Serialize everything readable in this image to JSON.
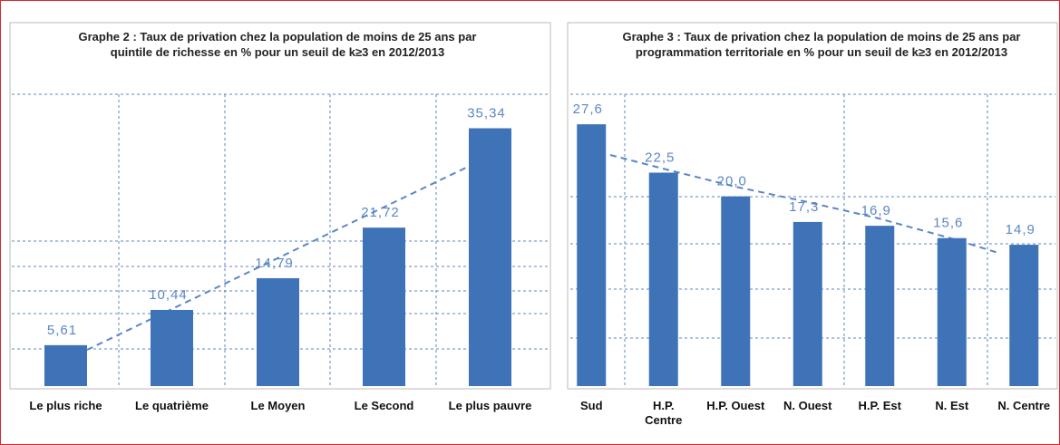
{
  "chart_data": [
    {
      "type": "bar",
      "title": "Graphe 2 : Taux de privation chez la population de moins de 25 ans par quintile de richesse en % pour un seuil de k≥3 en 2012/2013",
      "categories": [
        "Le plus riche",
        "Le quatrième",
        "Le Moyen",
        "Le Second",
        "Le plus pauvre"
      ],
      "values": [
        5.61,
        10.44,
        14.79,
        21.72,
        35.34
      ],
      "value_labels": [
        "5,61",
        "10,44",
        "14,79",
        "21,72",
        "35,34"
      ],
      "color": "#3f73b8",
      "ylim": [
        0,
        40
      ]
    },
    {
      "type": "bar",
      "title": "Graphe 3 : Taux de privation chez la population de moins de 25 ans par programmation territoriale en % pour un seuil de k≥3 en 2012/2013",
      "categories": [
        "Sud",
        "H.P. Centre",
        "H.P. Ouest",
        "N. Ouest",
        "H.P. Est",
        "N. Est",
        "N. Centre"
      ],
      "values": [
        27.6,
        22.5,
        20.0,
        17.3,
        16.9,
        15.6,
        14.9
      ],
      "value_labels": [
        "27,6",
        "22,5",
        "20,0",
        "17,3",
        "16,9",
        "15,6",
        "14,9"
      ],
      "color": "#3f73b8",
      "ylim": [
        0,
        30
      ]
    }
  ]
}
